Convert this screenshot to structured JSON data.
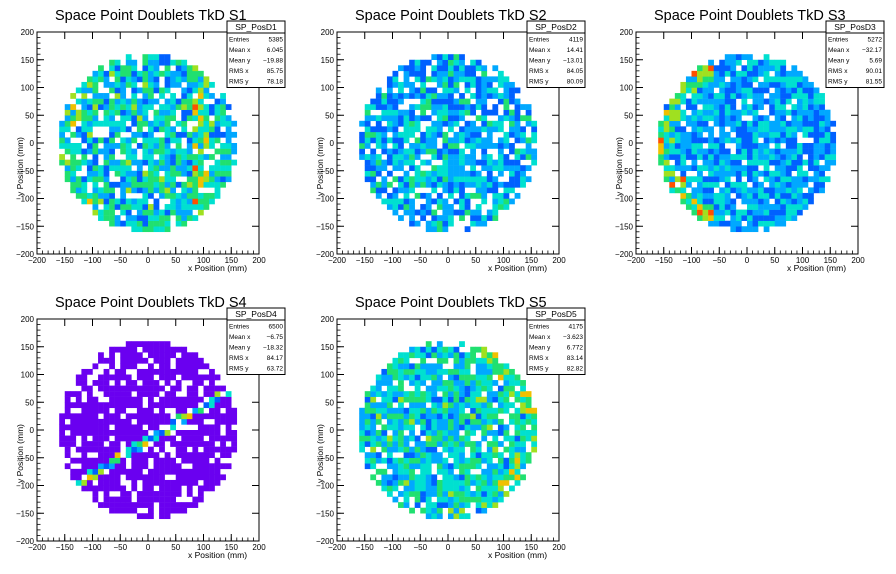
{
  "window": {
    "background": "#ffffff"
  },
  "colorscale": [
    "#6a00f0",
    "#4400ff",
    "#1a2bff",
    "#0060ff",
    "#00a8ff",
    "#00e0d0",
    "#20e070",
    "#a0e020",
    "#f0c000",
    "#ff5000",
    "#e00000"
  ],
  "chart_data": [
    {
      "type": "heatmap",
      "title": "Space Point Doublets TkD S1",
      "xlabel": "x Position (mm)",
      "ylabel": "y Position (mm)",
      "xlim": [
        -200,
        200
      ],
      "ylim": [
        -200,
        200
      ],
      "xticks": [
        -200,
        -150,
        -100,
        -50,
        0,
        50,
        100,
        150,
        200
      ],
      "yticks": [
        -200,
        -150,
        -100,
        -50,
        0,
        50,
        100,
        150,
        200
      ],
      "stats": {
        "name": "SP_PosD1",
        "rows": [
          {
            "label": "Entries",
            "value": "5385"
          },
          {
            "label": "Mean x",
            "value": "6.045"
          },
          {
            "label": "Mean y",
            "value": "−19.88"
          },
          {
            "label": "RMS x",
            "value": "85.75"
          },
          {
            "label": "RMS y",
            "value": "78.18"
          }
        ]
      },
      "pattern": {
        "radius": 160,
        "bin": 10,
        "holes": 0.17,
        "base": 3.0,
        "spread": 3.6,
        "seed": 11,
        "band": {
          "type": "vertical",
          "x": 95,
          "width": 12,
          "boost": 3
        },
        "edge": {
          "side": "left",
          "boost": 1.6
        }
      }
    },
    {
      "type": "heatmap",
      "title": "Space Point Doublets TkD S2",
      "xlabel": "x Position (mm)",
      "ylabel": "y Position (mm)",
      "xlim": [
        -200,
        200
      ],
      "ylim": [
        -200,
        200
      ],
      "xticks": [
        -200,
        -150,
        -100,
        -50,
        0,
        50,
        100,
        150,
        200
      ],
      "yticks": [
        -200,
        -150,
        -100,
        -50,
        0,
        50,
        100,
        150,
        200
      ],
      "stats": {
        "name": "SP_PosD2",
        "rows": [
          {
            "label": "Entries",
            "value": "4119"
          },
          {
            "label": "Mean x",
            "value": "14.41"
          },
          {
            "label": "Mean y",
            "value": "−13.01"
          },
          {
            "label": "RMS x",
            "value": "84.05"
          },
          {
            "label": "RMS y",
            "value": "80.09"
          }
        ]
      },
      "pattern": {
        "radius": 160,
        "bin": 10,
        "holes": 0.19,
        "base": 2.5,
        "spread": 3.4,
        "seed": 23,
        "band": {
          "type": "diagonal",
          "slope": 0.55,
          "offset": -40,
          "width": 14,
          "boost": 1.8
        },
        "edge": {
          "side": "none",
          "boost": 0
        }
      }
    },
    {
      "type": "heatmap",
      "title": "Space Point Doublets TkD S3",
      "xlabel": "x Position (mm)",
      "ylabel": "y Position (mm)",
      "xlim": [
        -200,
        200
      ],
      "ylim": [
        -200,
        200
      ],
      "xticks": [
        -200,
        -150,
        -100,
        -50,
        0,
        50,
        100,
        150,
        200
      ],
      "yticks": [
        -200,
        -150,
        -100,
        -50,
        0,
        50,
        100,
        150,
        200
      ],
      "stats": {
        "name": "SP_PosD3",
        "rows": [
          {
            "label": "Entries",
            "value": "5272"
          },
          {
            "label": "Mean x",
            "value": "−32.17"
          },
          {
            "label": "Mean y",
            "value": "5.69"
          },
          {
            "label": "RMS x",
            "value": "90.01"
          },
          {
            "label": "RMS y",
            "value": "81.55"
          }
        ]
      },
      "pattern": {
        "radius": 160,
        "bin": 10,
        "holes": 0.13,
        "base": 2.6,
        "spread": 2.8,
        "seed": 37,
        "band": {
          "type": "none"
        },
        "edge": {
          "side": "left",
          "boost": 4.5
        }
      }
    },
    {
      "type": "heatmap",
      "title": "Space Point Doublets TkD S4",
      "xlabel": "x Position (mm)",
      "ylabel": "y Position (mm)",
      "xlim": [
        -200,
        200
      ],
      "ylim": [
        -200,
        200
      ],
      "xticks": [
        -200,
        -150,
        -100,
        -50,
        0,
        50,
        100,
        150,
        200
      ],
      "yticks": [
        -200,
        -150,
        -100,
        -50,
        0,
        50,
        100,
        150,
        200
      ],
      "stats": {
        "name": "SP_PosD4",
        "rows": [
          {
            "label": "Entries",
            "value": "6500"
          },
          {
            "label": "Mean x",
            "value": "−6.75"
          },
          {
            "label": "Mean y",
            "value": "−18.32"
          },
          {
            "label": "RMS x",
            "value": "84.17"
          },
          {
            "label": "RMS y",
            "value": "63.72"
          }
        ]
      },
      "pattern": {
        "radius": 160,
        "bin": 10,
        "holes": 0.2,
        "base": 0.0,
        "spread": 0.0,
        "seed": 51,
        "band": {
          "type": "diagonal",
          "slope": 0.62,
          "offset": -18,
          "width": 9,
          "boost": 5
        },
        "edge": {
          "side": "none",
          "boost": 0
        }
      }
    },
    {
      "type": "heatmap",
      "title": "Space Point Doublets TkD S5",
      "xlabel": "x Position (mm)",
      "ylabel": "y Position (mm)",
      "xlim": [
        -200,
        200
      ],
      "ylim": [
        -200,
        200
      ],
      "xticks": [
        -200,
        -150,
        -100,
        -50,
        0,
        50,
        100,
        150,
        200
      ],
      "yticks": [
        -200,
        -150,
        -100,
        -50,
        0,
        50,
        100,
        150,
        200
      ],
      "stats": {
        "name": "SP_PosD5",
        "rows": [
          {
            "label": "Entries",
            "value": "4175"
          },
          {
            "label": "Mean x",
            "value": "−3.623"
          },
          {
            "label": "Mean y",
            "value": "6.772"
          },
          {
            "label": "RMS x",
            "value": "83.14"
          },
          {
            "label": "RMS y",
            "value": "82.82"
          }
        ]
      },
      "pattern": {
        "radius": 160,
        "bin": 10,
        "holes": 0.15,
        "base": 3.2,
        "spread": 3.4,
        "seed": 67,
        "band": {
          "type": "none"
        },
        "edge": {
          "side": "right",
          "boost": 2.2
        }
      }
    }
  ]
}
